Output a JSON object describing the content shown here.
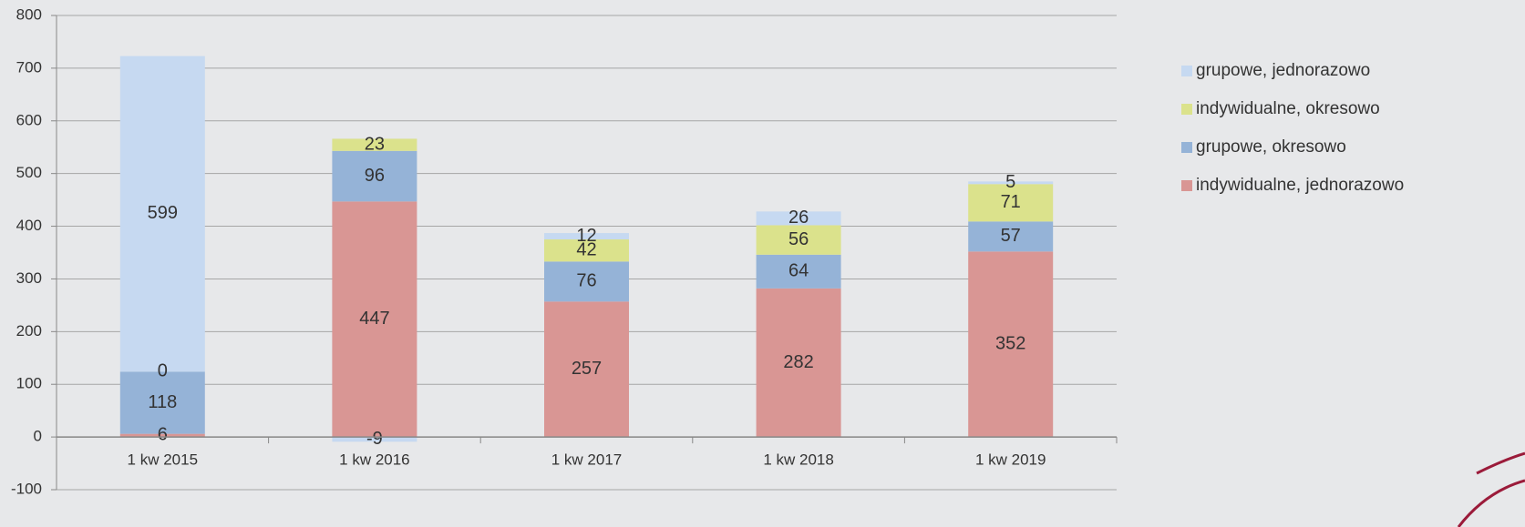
{
  "chart_data": {
    "type": "stacked_bar",
    "categories": [
      "1 kw 2015",
      "1 kw 2016",
      "1 kw 2017",
      "1 kw 2018",
      "1 kw 2019"
    ],
    "series": [
      {
        "name": "indywidualne, jednorazowo",
        "color": "#d99694",
        "values": [
          6,
          447,
          257,
          282,
          352
        ]
      },
      {
        "name": "grupowe, okresowo",
        "color": "#95b3d7",
        "values": [
          118,
          96,
          76,
          64,
          57
        ]
      },
      {
        "name": "indywidualne, okresowo",
        "color": "#dbe28c",
        "values": [
          0,
          23,
          42,
          56,
          71
        ]
      },
      {
        "name": "grupowe, jednorazowo",
        "color": "#c6d9f1",
        "values": [
          599,
          -9,
          12,
          26,
          5
        ]
      }
    ],
    "ylim": [
      -100,
      800
    ],
    "yticks": [
      -100,
      0,
      100,
      200,
      300,
      400,
      500,
      600,
      700,
      800
    ],
    "grid": true,
    "legend": "right"
  }
}
